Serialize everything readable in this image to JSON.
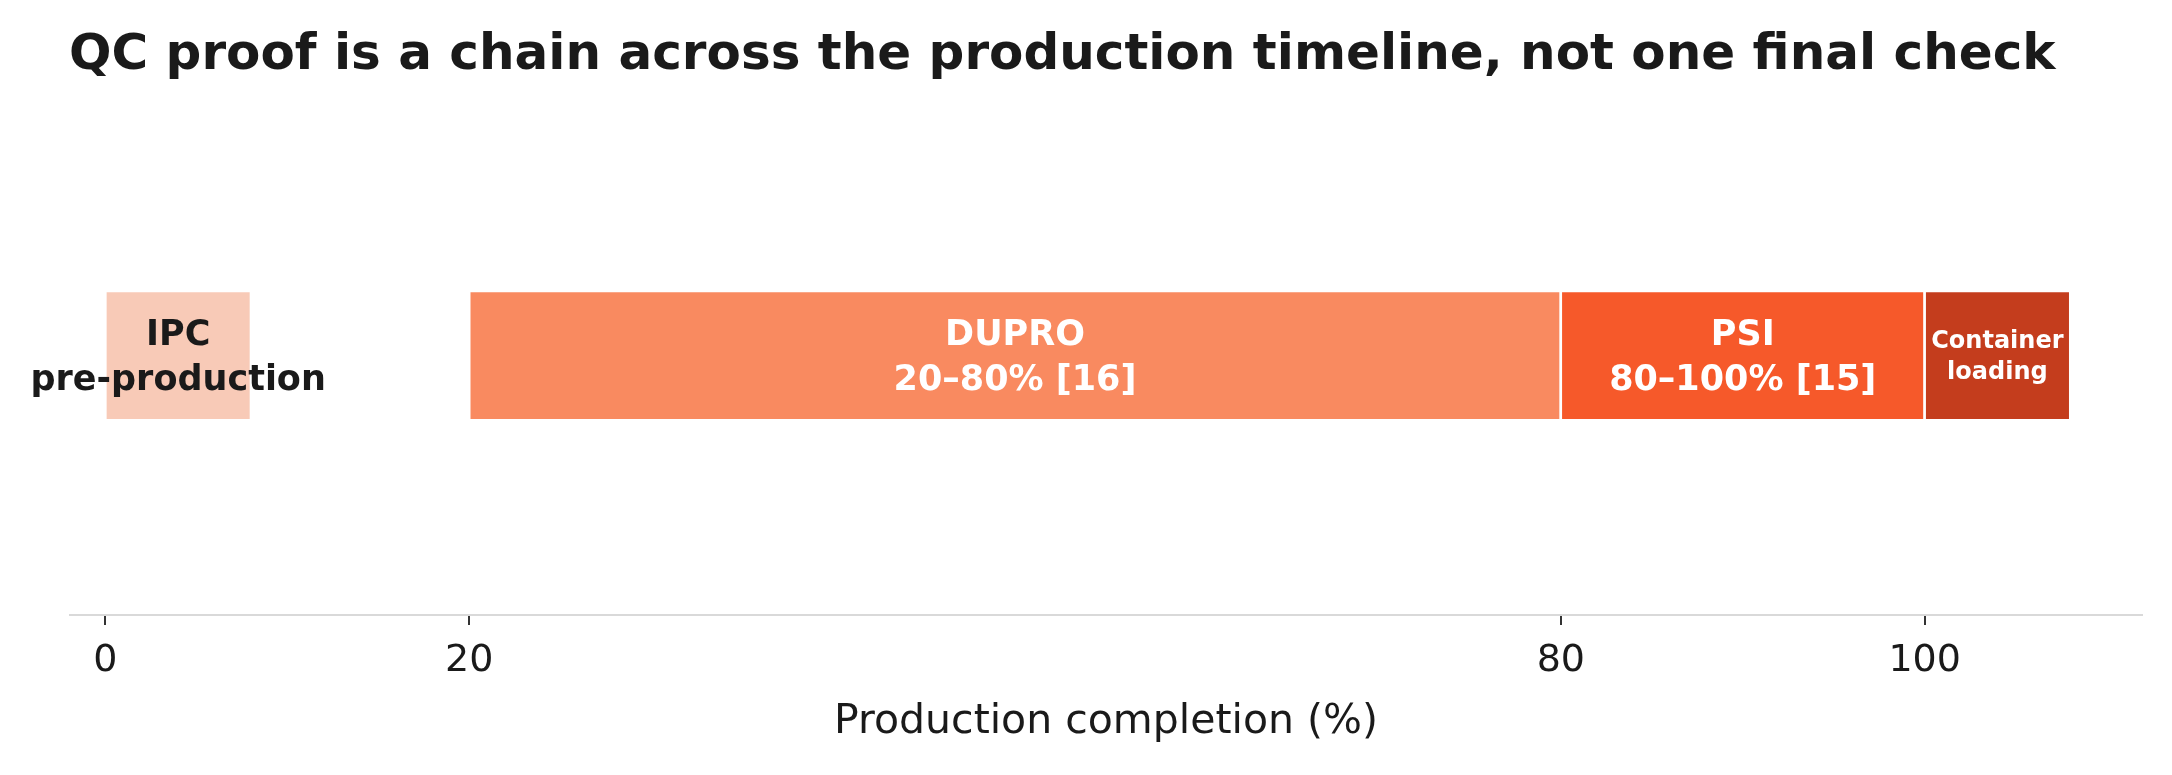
{
  "chart_data": {
    "type": "bar",
    "orientation": "horizontal",
    "title": "QC proof is a chain across the production timeline, not one final check",
    "xlabel": "Production completion (%)",
    "categories": [
      null
    ],
    "series": [
      {
        "name": "IPC\npre-production",
        "color": "#f8cab7",
        "values": [
          8
        ],
        "base": [
          0
        ]
      },
      {
        "name": "DUPRO\n20–80% [16]",
        "color": "#f98a60",
        "values": [
          60
        ],
        "base": [
          20
        ]
      },
      {
        "name": "PSI\n80–100% [15]",
        "color": "#f6592a",
        "values": [
          20
        ],
        "base": [
          80
        ]
      },
      {
        "name": "Container\nloading",
        "color": "#c43d1d",
        "values": [
          8
        ],
        "base": [
          100
        ]
      }
    ],
    "xlim": [
      -2,
      112
    ],
    "xticks": [
      0,
      20,
      80,
      100
    ]
  }
}
